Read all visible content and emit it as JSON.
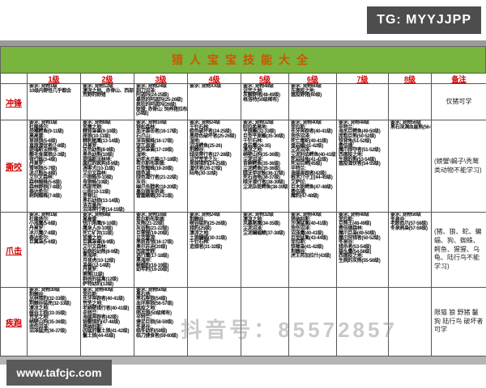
{
  "badge": {
    "text": "TG: MYYJJPP"
  },
  "watermarks": {
    "site": "www.tafcjc.com",
    "douyin": "♪ 抖音号：85572857"
  },
  "table": {
    "title": "猎人宝宝技能大全",
    "columns": [
      "1级",
      "2级",
      "3级",
      "4级",
      "5级",
      "6级",
      "7级",
      "8级",
      "备注"
    ],
    "rows": [
      {
        "label": "冲锋",
        "cells": [
          [
            "要求: 宠物1级",
            "10级内野怪几乎都会"
          ],
          [
            "要求: 宠物12级",
            "凄凉之地、赤脊山、西部",
            "荒野的野猪"
          ],
          [
            "要求: 宠物24级",
            "剃刀沼泽:",
            "阿迦玛(24-25级)",
            "暴怒的阿迦玛(25-26级)",
            "疯狂的阿迦玛(26级)",
            "联盟: 赤脊山: 饲养猪拉布",
            "(24级)"
          ],
          [
            "要求: 宠物XX级"
          ],
          [
            "要求: 宠物48级",
            "诅咒之地:",
            "灰鬃野猪(48-49级)",
            "格洛特(50级稀有)"
          ],
          [
            "要求: 宠物60级",
            "东瘟疫之地:",
            "瘟疫野猪(60级)"
          ],
          [],
          []
        ],
        "note": "仅猪可学"
      },
      {
        "label": "撕咬",
        "cells": [
          [
            "要求: 宠物1级",
            "杜隆塔尔:",
            "恐嘴鳄鱼(9-11级)",
            "莫高雷:",
            "草原狼(5-6级)",
            "草原潜伏者(7-8级)",
            "提瑞斯法林地:",
            "鬃毛食腐狼(2-3级)",
            "夜行蛛(3-4级)",
            "丹莫罗:",
            "雪地狼(5-7级)",
            "冰爪熊(6-8级)",
            "艾尔文森林:",
            "森林蜘蛛(5-6级)",
            "森林野狼(7-8级)",
            "泰达希尔:",
            "树网蜘蛛(7-8级)"
          ],
          [
            "要求: 宠物8级",
            "贫瘠之地:",
            "棘背枭兽(9-10级)",
            "座狼(10-11级)",
            "棘刺尾鹰(13-14级)",
            "丹莫罗:",
            "灰色幼熊(8-9级)",
            "黑色幼熊(10级)",
            "提瑞斯法林地:",
            "腐烂的疯狗(8-9级)",
            "凋零犬(10-11级)",
            "艾尔文森林:",
            "小狼蛛(9-10级)",
            "母狼蛛(10级)",
            "西部荒野:",
            "山狗(10-11级)",
            "赤脊山:",
            "黑石幼狼(13-14级)",
            "洛克莫丹:",
            "沼泽爬行者(14-15级)"
          ],
          [
            "要求: 宠物16级",
            "银松森林:",
            "血牙袭击者(16-17级)",
            "石爪山:",
            "深苔蜘蛛(16-17级)",
            "突兀海滩:",
            "变异枭兽(17-19级)",
            "湿地:",
            "幼年木爪兽(17-18级)",
            "希尔斯布莱德:",
            "巨型蜘蛛(19-20级)",
            "暗色湖:",
            "绿色潜行者(21-22级)",
            "灰谷:",
            "幽爪杀戮者(19-20级)",
            "奥尔德里奇湖:",
            "雷霆蜥蜴(20-21级)"
          ],
          [
            "要求: 宠物24级",
            "千针石林:",
            "棕色破坏者(24-25级)",
            "黑棕色破坏者(25-26级)",
            "湿地:",
            "沼泽鳄鱼(25-26)",
            "荆棘谷:",
            "绿皮爬行者(27-28级)",
            "诅咒荒芜之丘:",
            "草原猎豹(24-25级)",
            "潜伏者(26-27级)",
            "陆龟(30-32级)"
          ],
          [
            "要求: 宠物32级",
            "阿拉希高地:",
            "平原雕(32-33级)",
            "巨型平原雕(35-36级)",
            "千针石林:",
            "盘岩鹰(34-35)",
            "凄凉之地:",
            "峭壁山狗(35-36级)",
            "尘泥沼泽:",
            "苔藓鳄鱼(35-36级)",
            "尘泥鳄鱼(35-36级)",
            "暗牙甲状蛛(36-37级)",
            "死石海龟(36-37级)",
            "暗牙潜行者(38-39级)",
            "尘泥杂斑鳄鱼(38-39级)"
          ],
          [
            "要求: 宠物40级",
            "菲拉斯:",
            "长牙奔跑者(40-41级)",
            "悲伤沼泽:",
            "死亡毒蛇(40-41级)",
            "盘岩蝎(41-42级)",
            "尘泥沼泽:",
            "尘泥利齿鳄鱼(40-41级)",
            "死岩陆龟(41-42级)",
            "死沼巨鳄(45级)",
            "辛特兰:",
            "海崖奔跑者(42级)",
            "根木穴守卫(44-45级)",
            "艾萨拉:",
            "巨木斑鳄鱼(47-48级)",
            "费伍德:",
            "魔豹(47-48级)"
          ],
          [
            "要求: 宠物48级",
            "辛特兰:",
            "海水巨鳄鱼(49-50级)",
            "庞粗巨熊(50-52级)",
            "铁背龟(51-52级)",
            "费伍德:",
            "魔爪掠夺者(51-52级)",
            "西瘟疫之地:",
            "生病的熊(53-54级)",
            "瘟疫潜伏者(54-55级)"
          ],
          [
            "要求: 宠物56级",
            "黑石深渊血崖熊(56-57)"
          ]
        ],
        "note": "(螃蟹\\蝎子\\秃鹫类动物不能学习)"
      },
      {
        "label": "爪击",
        "cells": [
          [
            "要求: 宠物1级",
            "杜隆塔尔:",
            "小海鹰(5-6级)",
            "丹莫罗:",
            "冰爪鹰(7-8级)",
            "泰达希尔:",
            "巨翼枭(5-6级)"
          ],
          [
            "要求: 宠物8级",
            "莫高雷:",
            "锐爪角鹰(9-10级)",
            "鹰身人(9-10级)",
            "死亡矿井(11级)",
            "贫瘠之地:",
            "巨翼枭兽(8-9级)",
            "艾尔文森林:",
            "染病的幼熊(8-9级)",
            "黑海岸:",
            "月夜虎(10-12级)",
            "枭兽(12-14级)",
            "丹莫罗:",
            "狮鹫(11级)",
            "群居的猛禽(12级)",
            "萨特幼豹(13级)"
          ],
          [
            "要求: 宠物16级",
            "希尔斯布莱德:",
            "灰熊(21-22级)",
            "灰谷熊(21-22级)",
            "巨猩猩(19-20级)",
            "贝克雷湾:",
            "黑斑首领(16-17级)",
            "奥尔苏迪(20级)",
            "西部荒野:",
            "逃行鹰(17-18级)",
            "黑海岸:",
            "蜥蜴豹(18-19级)",
            "幼年豹(19-20级)"
          ],
          [
            "要求: 宠物24级",
            "荆棘谷:",
            "峡谷猛豹(25-26级)",
            "猎豹(25级)",
            "凄凉之地:",
            "土狼蝙蝠(30-31级)",
            "千针石林:",
            "追猎者(31-32级)"
          ],
          [
            "要求: 宠物32级",
            "凄凉之地:",
            "风暴尾鹰(34-35级)",
            "尘泥沼泽:",
            "尘泥蝙蝠鲼(37-38级)"
          ],
          [
            "要求: 宠物40级",
            "塔纳利斯:",
            "沙漠猛禽(40-41级)",
            "悲伤沼泽:",
            "沼泽鹰(40-41级)",
            "巨型猛禽(43-44级)",
            "菲拉斯:",
            "铁喙枭(41-42级)",
            "荆棘谷:",
            "虎王邦加拉什(43级)"
          ],
          [
            "要求: 宠物48级",
            "菲拉斯:",
            "巨熊王(48-49级)",
            "费伍德森林:",
            "魔爪巨枭(49-50级)",
            "魔爪狩猎者(50-52级)",
            "冬泉谷:",
            "猎杀者(53-54级)",
            "猫头鹰(54-56级)",
            "西瘟疫之地:",
            "生病的灰熊(55-56级)"
          ],
          [
            "要求: 宠物56级",
            "冬泉谷:",
            "老龄血爪(57-58级)",
            "冬泉鸦枭(57-59级)"
          ]
        ],
        "note": "(猪、狼、蛇、蝙蝠、狗、蜘蛛、鳄鱼、猩猩、乌龟、陆行鸟不能学习)"
      },
      {
        "label": "疾跑",
        "cells": [
          [
            "要求: 宠物30级",
            "荆棘谷:",
            "丛林猎豹(32-33级)",
            "荆棘谷猛虎(32-33级)",
            "凄凉之地:",
            "峡谷土狼(33-35级)",
            "荒芜之地:",
            "峭壁山狗(35-36级)",
            "悲伤沼泽:",
            "沼泽猛虎(36-37级)"
          ],
          [
            "要求: 宠物40级",
            "菲拉斯:",
            "长牙奔跑者(40-41级)",
            "荒芜之地:",
            "老峭壁猎行者(40-41级)",
            "辛特兰:",
            "海崖奔跑者(42级)",
            "银鬃猎豹(47-48级)",
            "塔纳利斯:",
            "凶猛的鬣土狼(41-42级)",
            "鬣土狼(44-45级)"
          ],
          [
            "要求: 宠物50级",
            "黑石塔:",
            "黑石座狼(54级)",
            "血环座狼(56-57级)",
            "瘟疫之地:",
            "哨兵狼(50级稀有)",
            "辛特兰:",
            "捷足巨狼(58-59级)",
            "冬泉谷:",
            "临冬幼豹(59级)",
            "临刀捷食者(59-60级)"
          ],
          [],
          [],
          [],
          [],
          []
        ],
        "note": "限猫 狼 野猪 鬣狗 陆行鸟 破坏者可学"
      }
    ]
  }
}
